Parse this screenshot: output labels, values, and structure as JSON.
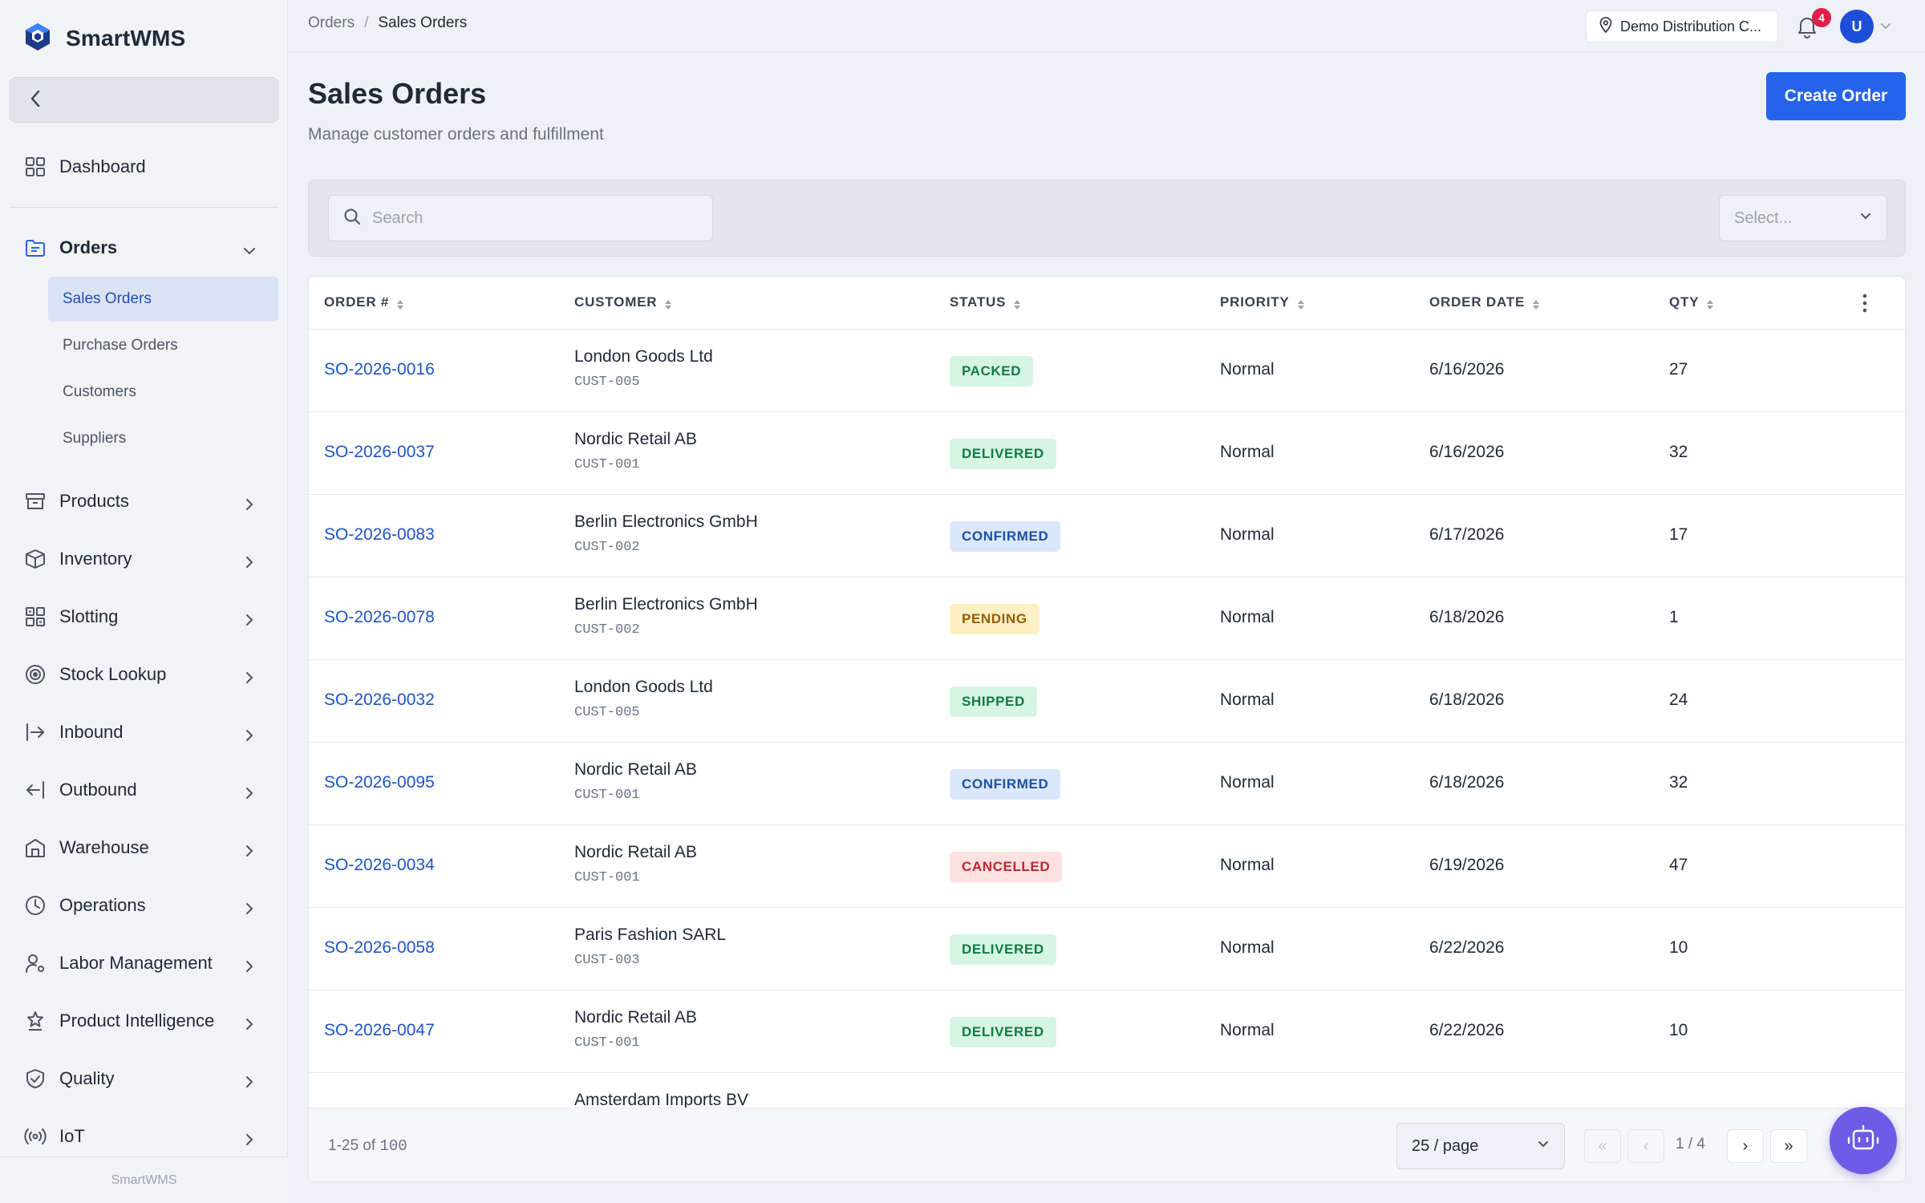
{
  "app": {
    "name": "SmartWMS",
    "footer": "SmartWMS"
  },
  "sidebar": {
    "items": [
      {
        "label": "Dashboard",
        "icon": "grid-icon"
      },
      {
        "label": "Orders",
        "icon": "folder-list-icon",
        "expanded": true,
        "children": [
          {
            "label": "Sales Orders",
            "active": true
          },
          {
            "label": "Purchase Orders"
          },
          {
            "label": "Customers"
          },
          {
            "label": "Suppliers"
          }
        ]
      },
      {
        "label": "Products",
        "icon": "archive-icon"
      },
      {
        "label": "Inventory",
        "icon": "box-icon"
      },
      {
        "label": "Slotting",
        "icon": "slots-grid-icon"
      },
      {
        "label": "Stock Lookup",
        "icon": "target-icon"
      },
      {
        "label": "Inbound",
        "icon": "inbound-arrow-icon"
      },
      {
        "label": "Outbound",
        "icon": "outbound-arrow-icon"
      },
      {
        "label": "Warehouse",
        "icon": "warehouse-icon"
      },
      {
        "label": "Operations",
        "icon": "clock-icon"
      },
      {
        "label": "Labor Management",
        "icon": "user-gear-icon"
      },
      {
        "label": "Product Intelligence",
        "icon": "award-icon"
      },
      {
        "label": "Quality",
        "icon": "shield-check-icon"
      },
      {
        "label": "IoT",
        "icon": "signal-icon"
      }
    ]
  },
  "topbar": {
    "breadcrumb": {
      "parent": "Orders",
      "separator": "/",
      "current": "Sales Orders"
    },
    "location": "Demo Distribution C...",
    "notifications": "4",
    "avatar": "U"
  },
  "page": {
    "title": "Sales Orders",
    "subtitle": "Manage customer orders and fulfillment",
    "create_label": "Create Order"
  },
  "filters": {
    "search_placeholder": "Search",
    "select_placeholder": "Select..."
  },
  "table": {
    "columns": [
      "ORDER #",
      "CUSTOMER",
      "STATUS",
      "PRIORITY",
      "ORDER DATE",
      "QTY"
    ],
    "rows": [
      {
        "order": "SO-2026-0016",
        "customer": "London Goods Ltd",
        "customer_id": "CUST-005",
        "status": "PACKED",
        "priority": "Normal",
        "date": "6/16/2026",
        "qty": "27"
      },
      {
        "order": "SO-2026-0037",
        "customer": "Nordic Retail AB",
        "customer_id": "CUST-001",
        "status": "DELIVERED",
        "priority": "Normal",
        "date": "6/16/2026",
        "qty": "32"
      },
      {
        "order": "SO-2026-0083",
        "customer": "Berlin Electronics GmbH",
        "customer_id": "CUST-002",
        "status": "CONFIRMED",
        "priority": "Normal",
        "date": "6/17/2026",
        "qty": "17"
      },
      {
        "order": "SO-2026-0078",
        "customer": "Berlin Electronics GmbH",
        "customer_id": "CUST-002",
        "status": "PENDING",
        "priority": "Normal",
        "date": "6/18/2026",
        "qty": "1"
      },
      {
        "order": "SO-2026-0032",
        "customer": "London Goods Ltd",
        "customer_id": "CUST-005",
        "status": "SHIPPED",
        "priority": "Normal",
        "date": "6/18/2026",
        "qty": "24"
      },
      {
        "order": "SO-2026-0095",
        "customer": "Nordic Retail AB",
        "customer_id": "CUST-001",
        "status": "CONFIRMED",
        "priority": "Normal",
        "date": "6/18/2026",
        "qty": "32"
      },
      {
        "order": "SO-2026-0034",
        "customer": "Nordic Retail AB",
        "customer_id": "CUST-001",
        "status": "CANCELLED",
        "priority": "Normal",
        "date": "6/19/2026",
        "qty": "47"
      },
      {
        "order": "SO-2026-0058",
        "customer": "Paris Fashion SARL",
        "customer_id": "CUST-003",
        "status": "DELIVERED",
        "priority": "Normal",
        "date": "6/22/2026",
        "qty": "10"
      },
      {
        "order": "SO-2026-0047",
        "customer": "Nordic Retail AB",
        "customer_id": "CUST-001",
        "status": "DELIVERED",
        "priority": "Normal",
        "date": "6/22/2026",
        "qty": "10"
      },
      {
        "order": "",
        "customer": "Amsterdam Imports BV",
        "customer_id": "",
        "status": "",
        "priority": "",
        "date": "",
        "qty": ""
      }
    ],
    "status_colors": {
      "PACKED": {
        "bg": "#d6f5e3",
        "fg": "#137a45"
      },
      "DELIVERED": {
        "bg": "#d6f5e3",
        "fg": "#137a45"
      },
      "SHIPPED": {
        "bg": "#d6f5e3",
        "fg": "#137a45"
      },
      "CONFIRMED": {
        "bg": "#dbe8fb",
        "fg": "#1e4fa8"
      },
      "PENDING": {
        "bg": "#fdf0c4",
        "fg": "#9a5b00"
      },
      "CANCELLED": {
        "bg": "#fde0e0",
        "fg": "#c0262d"
      }
    }
  },
  "pagination": {
    "range_prefix": "1-25 of",
    "total": "100",
    "per_page": "25 / page",
    "first": "«",
    "prev": "‹",
    "indicator": "1 / 4",
    "next": "›",
    "last": "»"
  },
  "colors": {
    "accent": "#2563eb",
    "link": "#1e54c6",
    "assistant": "#6d5ce6",
    "badge": "#e11d48"
  }
}
